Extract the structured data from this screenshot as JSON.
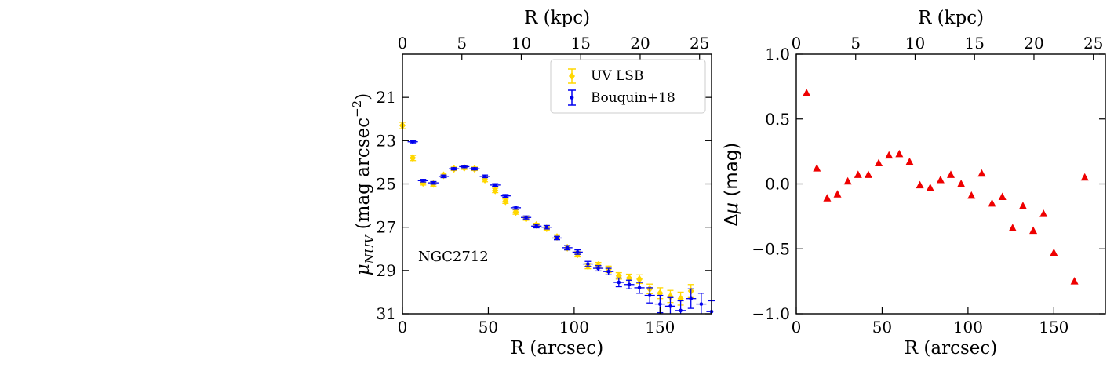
{
  "chart_data": [
    {
      "type": "scatter",
      "panel": "left",
      "xlabel": "R (arcsec)",
      "ylabel": "μ_NUV (mag arcsec⁻²)",
      "ylabel_parts": [
        "μ",
        "NUV",
        " (mag arcsec",
        "−2",
        ")"
      ],
      "top_xlabel": "R (kpc)",
      "xlim": [
        0,
        180
      ],
      "ylim": [
        31,
        19
      ],
      "y_inverted": true,
      "xticks": [
        0,
        50,
        100,
        150
      ],
      "yticks": [
        21,
        23,
        25,
        27,
        29,
        31
      ],
      "top_xticks": [
        0,
        5,
        10,
        15,
        20,
        25
      ],
      "kpc_per_arcsec": 0.1445,
      "annotation": "NGC2712",
      "legend_position": "upper right",
      "series": [
        {
          "name": "UV LSB",
          "color": "#FFD700",
          "marker": "diamond",
          "x": [
            0,
            6,
            12,
            18,
            24,
            30,
            36,
            42,
            48,
            54,
            60,
            66,
            72,
            78,
            84,
            90,
            96,
            102,
            108,
            114,
            120,
            126,
            132,
            138,
            144,
            150,
            156,
            162,
            168
          ],
          "y": [
            22.3,
            23.8,
            24.95,
            25.0,
            24.6,
            24.3,
            24.25,
            24.3,
            24.8,
            25.3,
            25.8,
            26.3,
            26.6,
            26.9,
            27.05,
            27.45,
            27.95,
            28.25,
            28.8,
            28.75,
            28.95,
            29.25,
            29.35,
            29.4,
            29.85,
            30.05,
            30.2,
            30.3,
            29.95
          ],
          "yerr": [
            0.15,
            0.12,
            0.1,
            0.1,
            0.1,
            0.08,
            0.08,
            0.08,
            0.1,
            0.1,
            0.1,
            0.1,
            0.08,
            0.08,
            0.08,
            0.1,
            0.1,
            0.12,
            0.12,
            0.12,
            0.15,
            0.15,
            0.18,
            0.2,
            0.22,
            0.25,
            0.28,
            0.3,
            0.3
          ]
        },
        {
          "name": "Bouquin+18",
          "color": "#0000EE",
          "marker": "dot",
          "x": [
            6,
            12,
            18,
            24,
            30,
            36,
            42,
            48,
            54,
            60,
            66,
            72,
            78,
            84,
            90,
            96,
            102,
            108,
            114,
            120,
            126,
            132,
            138,
            144,
            150,
            156,
            162,
            168,
            174,
            180
          ],
          "y": [
            23.05,
            24.85,
            24.95,
            24.65,
            24.3,
            24.2,
            24.3,
            24.65,
            25.05,
            25.55,
            26.1,
            26.55,
            26.95,
            27.0,
            27.5,
            27.95,
            28.15,
            28.7,
            28.9,
            29.05,
            29.55,
            29.65,
            29.8,
            30.15,
            30.55,
            30.65,
            30.85,
            30.3,
            30.55,
            30.9
          ],
          "yerr": [
            0.05,
            0.06,
            0.06,
            0.06,
            0.05,
            0.05,
            0.05,
            0.06,
            0.06,
            0.06,
            0.07,
            0.07,
            0.08,
            0.08,
            0.08,
            0.1,
            0.1,
            0.12,
            0.12,
            0.15,
            0.2,
            0.2,
            0.25,
            0.35,
            0.4,
            0.4,
            0.45,
            0.45,
            0.5,
            0.5
          ],
          "xerr": [
            3,
            3,
            3,
            3,
            3,
            3,
            3,
            3,
            3,
            3,
            3,
            3,
            3,
            3,
            3,
            3,
            3,
            3,
            3,
            3,
            3,
            3,
            3,
            3,
            3,
            3,
            3,
            3,
            3,
            3
          ]
        }
      ]
    },
    {
      "type": "scatter",
      "panel": "right",
      "xlabel": "R (arcsec)",
      "ylabel": "Δμ (mag)",
      "ylabel_parts": [
        "Δ",
        "μ",
        " (mag)"
      ],
      "top_xlabel": "R (kpc)",
      "xlim": [
        0,
        180
      ],
      "ylim": [
        -1.0,
        1.0
      ],
      "xticks": [
        0,
        50,
        100,
        150
      ],
      "yticks": [
        -1.0,
        -0.5,
        0.0,
        0.5,
        1.0
      ],
      "ytick_labels": [
        "−1.0",
        "−0.5",
        "0.0",
        "0.5",
        "1.0"
      ],
      "top_xticks": [
        0,
        5,
        10,
        15,
        20,
        25
      ],
      "kpc_per_arcsec": 0.1445,
      "series": [
        {
          "name": "Δμ",
          "color": "#EE0000",
          "marker": "triangle",
          "x": [
            6,
            12,
            18,
            24,
            30,
            36,
            42,
            48,
            54,
            60,
            66,
            72,
            78,
            84,
            90,
            96,
            102,
            108,
            114,
            120,
            126,
            132,
            138,
            144,
            150,
            162,
            168
          ],
          "y": [
            0.7,
            0.12,
            -0.11,
            -0.08,
            0.02,
            0.07,
            0.07,
            0.16,
            0.22,
            0.23,
            0.17,
            -0.01,
            -0.03,
            0.03,
            0.07,
            0.0,
            -0.09,
            0.08,
            -0.15,
            -0.1,
            -0.34,
            -0.17,
            -0.36,
            -0.23,
            -0.53,
            -0.75,
            0.05
          ]
        }
      ]
    }
  ]
}
